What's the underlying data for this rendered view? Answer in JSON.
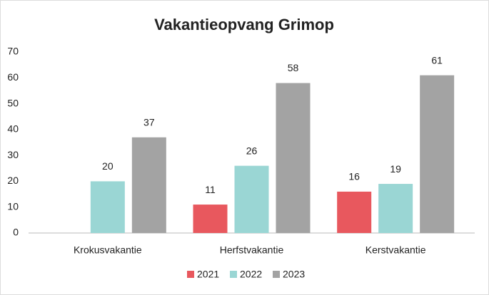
{
  "chart_data": {
    "type": "bar",
    "title": "Vakantieopvang Grimop",
    "categories": [
      "Krokusvakantie",
      "Herfstvakantie",
      "Kerstvakantie"
    ],
    "series": [
      {
        "name": "2021",
        "color": "#e8585e",
        "values": [
          null,
          11,
          16
        ]
      },
      {
        "name": "2022",
        "color": "#9ad6d4",
        "values": [
          20,
          26,
          19
        ]
      },
      {
        "name": "2023",
        "color": "#a3a3a3",
        "values": [
          37,
          58,
          61
        ]
      }
    ],
    "ylim": [
      0,
      70
    ],
    "yticks": [
      0,
      10,
      20,
      30,
      40,
      50,
      60,
      70
    ],
    "grid": false,
    "legend": "bottom"
  }
}
